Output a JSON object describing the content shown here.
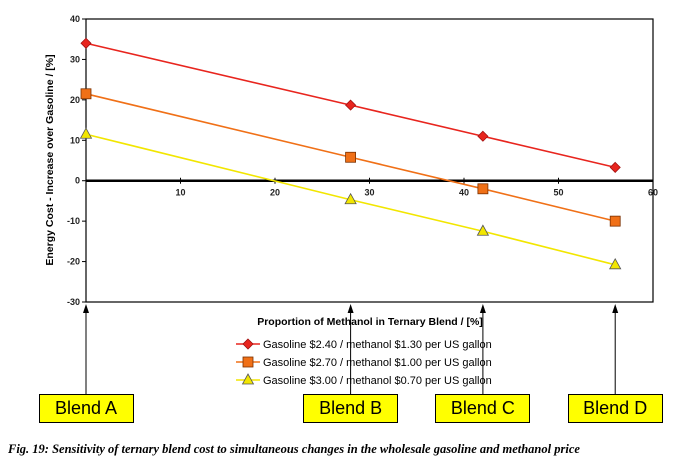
{
  "chart_data": {
    "type": "line",
    "xlabel": "Proportion of Methanol in Ternary Blend / [%]",
    "ylabel": "Energy Cost - Increase over Gasoline / [%]",
    "xlim": [
      0,
      60
    ],
    "ylim": [
      -30,
      40
    ],
    "x_ticks": [
      "10",
      "20",
      "30",
      "40",
      "50",
      "60"
    ],
    "y_ticks": [
      "40",
      "30",
      "20",
      "10",
      "0",
      "-10",
      "-20",
      "-30"
    ],
    "x": [
      0,
      28,
      42,
      56
    ],
    "series": [
      {
        "name": "Gasoline $2.40 / methanol $1.30 per US gallon",
        "values": [
          34,
          18.7,
          11,
          3.3
        ],
        "color": "#e8251e",
        "marker": "diamond"
      },
      {
        "name": "Gasoline $2.70 / methanol $1.00 per US gallon",
        "values": [
          21.5,
          5.8,
          -2,
          -10
        ],
        "color": "#f07017",
        "marker": "square"
      },
      {
        "name": "Gasoline $3.00 / methanol $0.70 per US gallon",
        "values": [
          11.5,
          -4.7,
          -12.5,
          -20.8
        ],
        "color": "#f2e600",
        "marker": "triangle"
      }
    ],
    "grid": false,
    "legend_position": "bottom-center",
    "annotations": [
      {
        "label": "Blend A",
        "x": 0
      },
      {
        "label": "Blend B",
        "x": 28
      },
      {
        "label": "Blend C",
        "x": 42
      },
      {
        "label": "Blend D",
        "x": 56
      }
    ],
    "annotation_color": "#ffff00"
  },
  "caption": "Fig. 19: Sensitivity of ternary blend cost to simultaneous changes in the wholesale gasoline and methanol price"
}
